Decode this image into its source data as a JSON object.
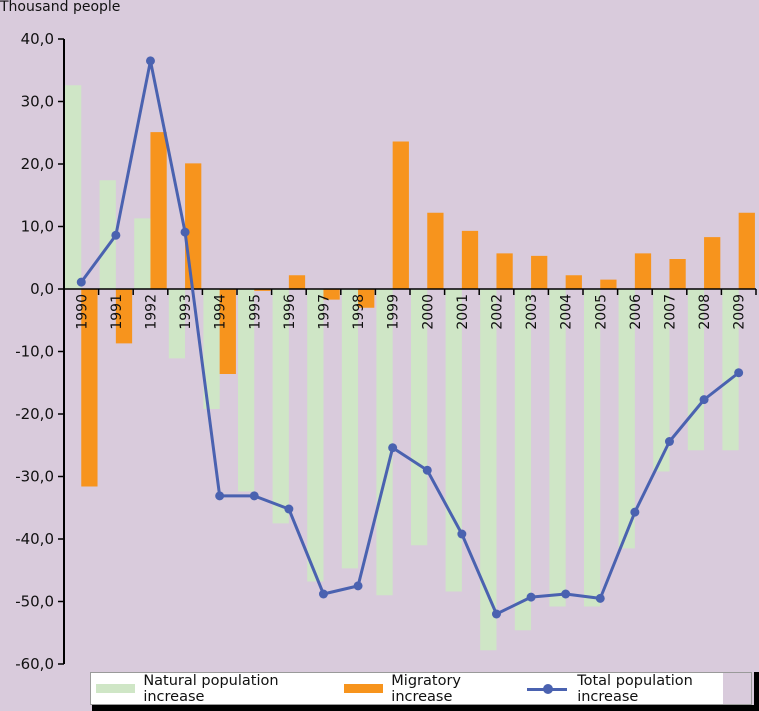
{
  "chart_data": {
    "type": "bar",
    "title": "",
    "ylabel": "Thousand people",
    "xlabel": "",
    "ylim": [
      -60,
      40
    ],
    "yticks": [
      40,
      30,
      20,
      10,
      0,
      -10,
      -20,
      -30,
      -40,
      -50,
      -60
    ],
    "ytick_labels": [
      "40,0",
      "30,0",
      "20,0",
      "10,0",
      "0,0",
      "-10,0",
      "-20,0",
      "-30,0",
      "-40,0",
      "-50,0",
      "-60,0"
    ],
    "categories": [
      "1990",
      "1991",
      "1992",
      "1993",
      "1994",
      "1995",
      "1996",
      "1997",
      "1998",
      "1999",
      "2000",
      "2001",
      "2002",
      "2003",
      "2004",
      "2005",
      "2006",
      "2007",
      "2008",
      "2009"
    ],
    "grid": false,
    "legend_position": "bottom",
    "series": [
      {
        "name": "Natural population increase",
        "type": "bar",
        "color": "#cfe6c6",
        "values": [
          32.6,
          17.4,
          11.3,
          -11.1,
          -19.2,
          -32.4,
          -37.5,
          -46.8,
          -44.7,
          -49.0,
          -41.0,
          -48.4,
          -57.8,
          -54.6,
          -50.8,
          -50.8,
          -41.5,
          -29.2,
          -25.8,
          -25.8
        ]
      },
      {
        "name": "Migratory increase",
        "type": "bar",
        "color": "#f7941d",
        "values": [
          -31.6,
          -8.7,
          25.1,
          20.1,
          -13.6,
          -0.3,
          2.2,
          -1.7,
          -3.0,
          23.6,
          12.2,
          9.3,
          5.7,
          5.3,
          2.2,
          1.5,
          5.7,
          4.8,
          8.3,
          12.2
        ]
      },
      {
        "name": "Total population increase",
        "type": "line",
        "color": "#4a62b0",
        "values": [
          1.1,
          8.6,
          36.5,
          9.1,
          -33.1,
          -33.1,
          -35.2,
          -48.8,
          -47.5,
          -25.4,
          -29.0,
          -39.2,
          -52.0,
          -49.3,
          -48.8,
          -49.5,
          -35.7,
          -24.4,
          -17.7,
          -13.4
        ]
      }
    ]
  }
}
